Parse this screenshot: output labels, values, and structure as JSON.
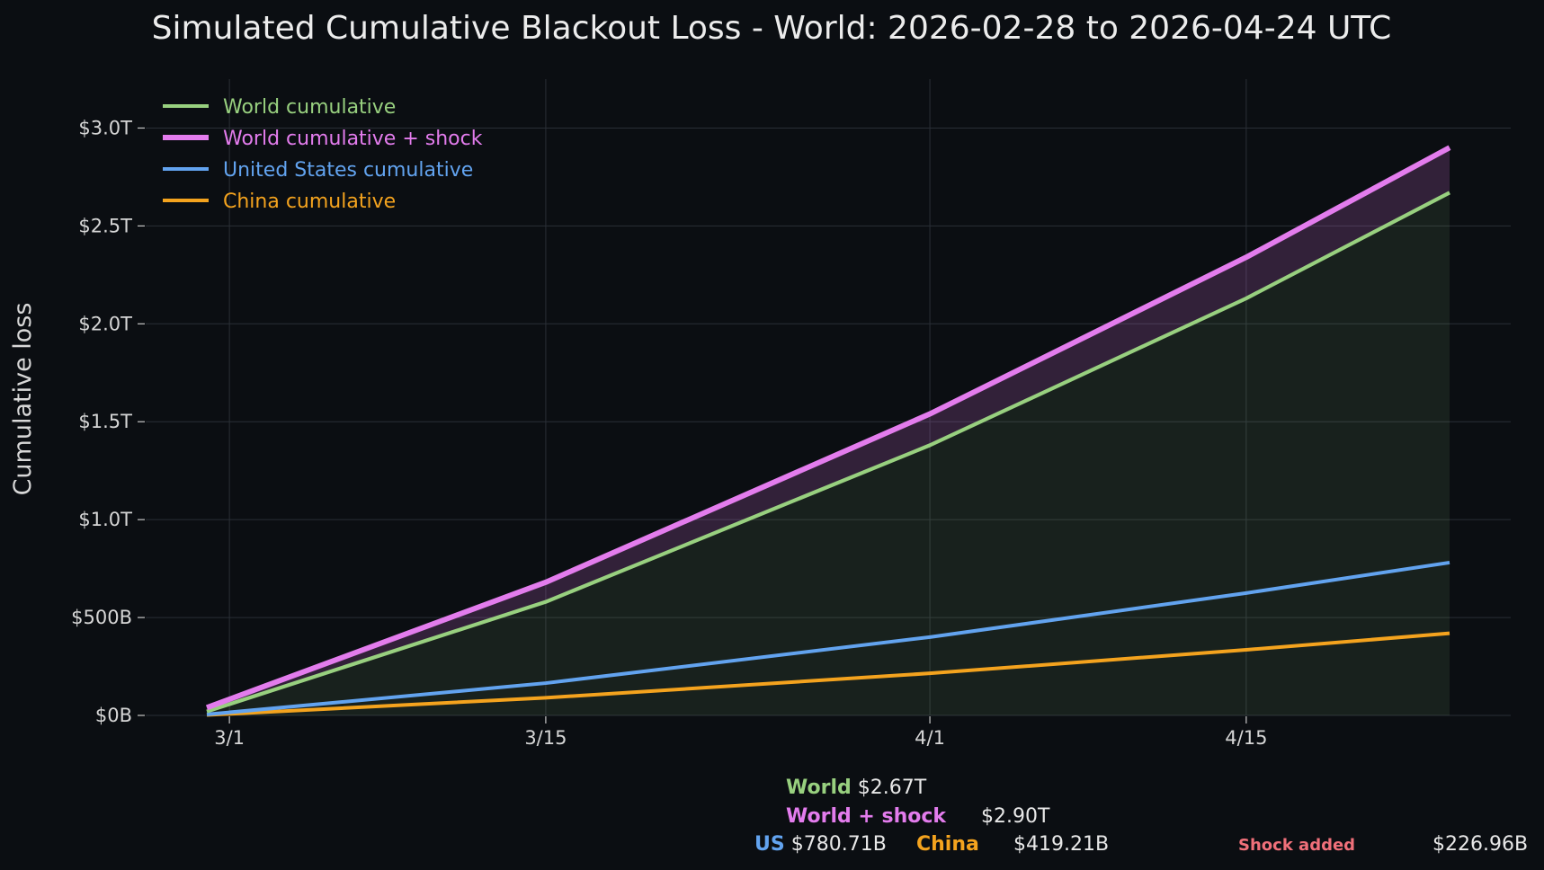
{
  "chart_data": {
    "type": "line",
    "title": "Simulated Cumulative Blackout Loss - World: 2026-02-28 to 2026-04-24 UTC",
    "ylabel": "Cumulative loss",
    "xlabel": "",
    "x_range": [
      "2026-02-28",
      "2026-04-24"
    ],
    "ylim": [
      0,
      3.25
    ],
    "y_unit": "trillion USD",
    "grid": true,
    "legend_position": "top-left",
    "x_ticks": [
      {
        "date": "2026-03-01",
        "label": "3/1"
      },
      {
        "date": "2026-03-15",
        "label": "3/15"
      },
      {
        "date": "2026-04-01",
        "label": "4/1"
      },
      {
        "date": "2026-04-15",
        "label": "4/15"
      }
    ],
    "y_ticks": [
      {
        "value": 0,
        "label": "$0B"
      },
      {
        "value": 0.5,
        "label": "$500B"
      },
      {
        "value": 1.0,
        "label": "$1.0T"
      },
      {
        "value": 1.5,
        "label": "$1.5T"
      },
      {
        "value": 2.0,
        "label": "$2.0T"
      },
      {
        "value": 2.5,
        "label": "$2.5T"
      },
      {
        "value": 3.0,
        "label": "$3.0T"
      }
    ],
    "series": [
      {
        "name": "World cumulative",
        "color": "#98d07f",
        "fill": true,
        "points": [
          [
            "2026-02-28",
            0.02
          ],
          [
            "2026-03-15",
            0.58
          ],
          [
            "2026-04-01",
            1.38
          ],
          [
            "2026-04-15",
            2.13
          ],
          [
            "2026-04-24",
            2.67
          ]
        ]
      },
      {
        "name": "World cumulative + shock",
        "color": "#e37ced",
        "fill": true,
        "points": [
          [
            "2026-02-28",
            0.04
          ],
          [
            "2026-03-15",
            0.68
          ],
          [
            "2026-04-01",
            1.54
          ],
          [
            "2026-04-15",
            2.34
          ],
          [
            "2026-04-24",
            2.9
          ]
        ]
      },
      {
        "name": "United States cumulative",
        "color": "#62a3ef",
        "fill": false,
        "points": [
          [
            "2026-02-28",
            0.005
          ],
          [
            "2026-03-15",
            0.165
          ],
          [
            "2026-04-01",
            0.4
          ],
          [
            "2026-04-15",
            0.625
          ],
          [
            "2026-04-24",
            0.78071
          ]
        ]
      },
      {
        "name": "China cumulative",
        "color": "#f4a31e",
        "fill": false,
        "points": [
          [
            "2026-02-28",
            0.002
          ],
          [
            "2026-03-15",
            0.09
          ],
          [
            "2026-04-01",
            0.215
          ],
          [
            "2026-04-15",
            0.335
          ],
          [
            "2026-04-24",
            0.41921
          ]
        ]
      }
    ]
  },
  "summary": {
    "world_label": "World",
    "world_value": "$2.67T",
    "shock_label": "World + shock",
    "shock_value": "$2.90T",
    "us_label": "US",
    "us_value": "$780.71B",
    "china_label": "China",
    "china_value": "$419.21B",
    "added_label": "Shock added",
    "added_value": "$226.96B",
    "colors": {
      "world": "#98d07f",
      "shock": "#e37ced",
      "us": "#62a3ef",
      "china": "#f4a31e",
      "added": "#f0707a"
    }
  }
}
